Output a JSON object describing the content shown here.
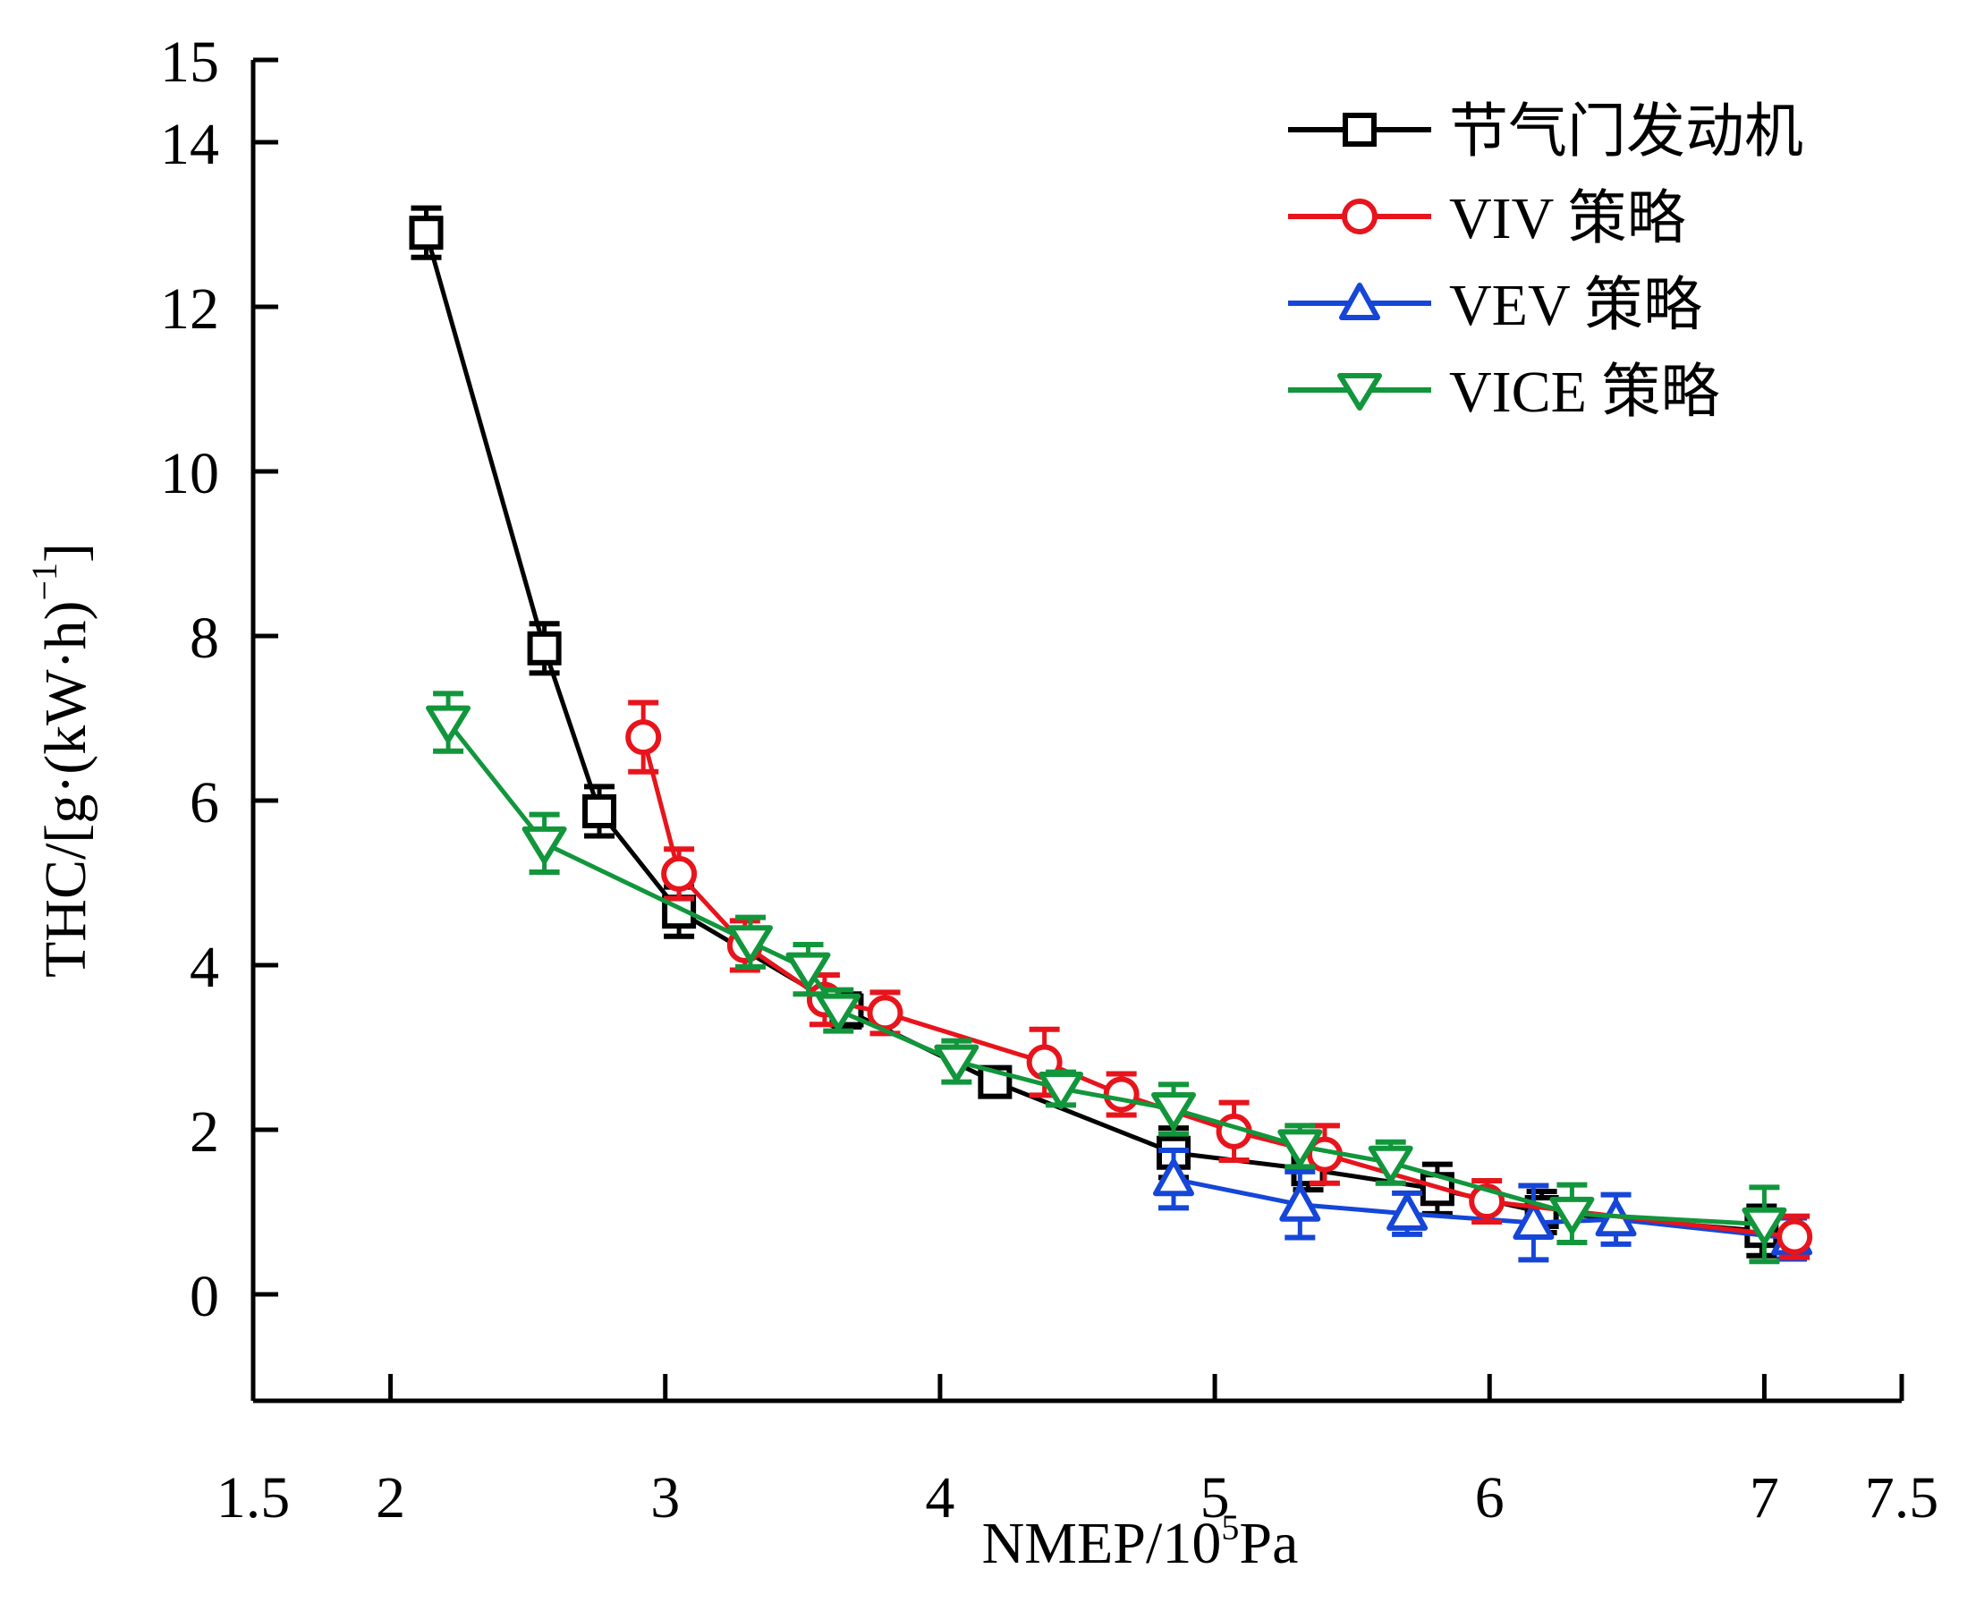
{
  "chart_data": {
    "type": "line",
    "title": "",
    "xlabel": "NMEP/10^5Pa",
    "xlabel_parts": {
      "base": "NMEP/10",
      "sup": "5",
      "tail": "Pa"
    },
    "ylabel": "THC/[g·(kW·h)^-1]",
    "ylabel_parts": {
      "base": "THC/[g·(kW·h)",
      "sup": "−1",
      "tail": "]"
    },
    "xlim": [
      1.5,
      7.5
    ],
    "ylim": [
      -1,
      15
    ],
    "xticks": [
      1.5,
      2,
      3,
      4,
      5,
      6,
      7,
      7.5
    ],
    "xtick_labels": [
      "1.5",
      "2",
      "3",
      "4",
      "5",
      "6",
      "7",
      "7.5"
    ],
    "yticks": [
      0,
      2,
      4,
      6,
      8,
      10,
      12,
      14,
      15
    ],
    "ytick_labels": [
      "0",
      "2",
      "4",
      "6",
      "8",
      "10",
      "12",
      "14",
      "15"
    ],
    "grid": false,
    "legend_position": "top-right",
    "error_bars": true,
    "series": [
      {
        "name": "节气门发动机",
        "color": "#000000",
        "marker": "square",
        "x": [
          2.13,
          2.56,
          2.76,
          3.05,
          3.66,
          4.2,
          4.85,
          5.34,
          5.81,
          6.19,
          6.99
        ],
        "y": [
          12.9,
          7.85,
          5.87,
          4.65,
          3.45,
          2.58,
          1.72,
          1.52,
          1.28,
          1.0,
          0.77
        ],
        "err": [
          0.3,
          0.3,
          0.3,
          0.3,
          0.2,
          0.15,
          0.3,
          0.25,
          0.3,
          0.25,
          0.3
        ]
      },
      {
        "name": "VIV 策略",
        "color": "#e8141c",
        "marker": "circle",
        "x": [
          2.92,
          3.05,
          3.29,
          3.58,
          3.8,
          4.38,
          4.66,
          5.07,
          5.4,
          5.99,
          7.11
        ],
        "y": [
          6.77,
          5.11,
          4.24,
          3.58,
          3.42,
          2.82,
          2.43,
          1.98,
          1.7,
          1.13,
          0.7
        ],
        "err": [
          0.42,
          0.3,
          0.3,
          0.3,
          0.25,
          0.4,
          0.25,
          0.35,
          0.35,
          0.25,
          0.25
        ]
      },
      {
        "name": "VEV 策略",
        "color": "#1546d8",
        "marker": "triangle-up",
        "x": [
          4.85,
          5.31,
          5.7,
          6.16,
          6.46,
          7.1
        ],
        "y": [
          1.4,
          1.09,
          0.98,
          0.87,
          0.91,
          0.68
        ],
        "err": [
          0.35,
          0.4,
          0.25,
          0.45,
          0.3,
          0.25
        ]
      },
      {
        "name": "VICE 策略",
        "color": "#12963c",
        "marker": "triangle-down",
        "x": [
          2.21,
          2.56,
          3.31,
          3.52,
          3.63,
          4.06,
          4.44,
          4.85,
          5.31,
          5.64,
          6.3,
          7.0
        ],
        "y": [
          6.95,
          5.48,
          4.28,
          3.95,
          3.45,
          2.83,
          2.5,
          2.25,
          1.8,
          1.6,
          0.98,
          0.85
        ],
        "err": [
          0.35,
          0.35,
          0.3,
          0.3,
          0.25,
          0.25,
          0.2,
          0.3,
          0.25,
          0.25,
          0.35,
          0.45
        ]
      }
    ]
  },
  "legend": {
    "items": [
      {
        "label": "节气门发动机"
      },
      {
        "label": "VIV 策略"
      },
      {
        "label": "VEV 策略"
      },
      {
        "label": "VICE 策略"
      }
    ]
  }
}
